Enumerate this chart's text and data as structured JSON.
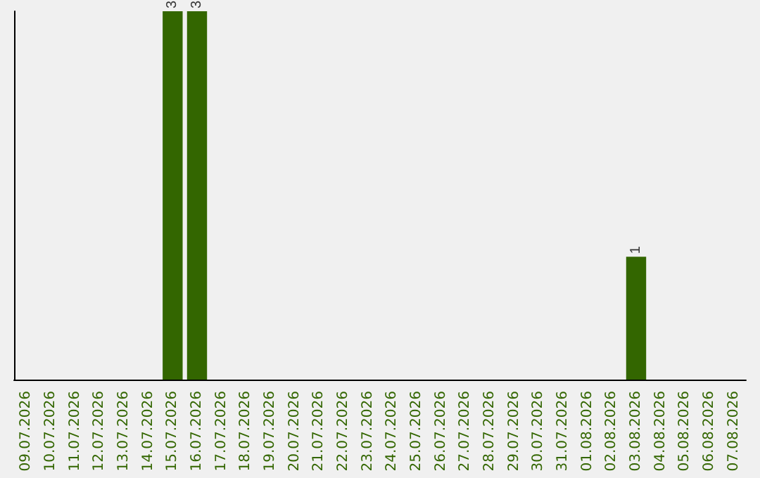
{
  "chart_data": {
    "type": "bar",
    "categories": [
      "09.07.2026",
      "10.07.2026",
      "11.07.2026",
      "12.07.2026",
      "13.07.2026",
      "14.07.2026",
      "15.07.2026",
      "16.07.2026",
      "17.07.2026",
      "18.07.2026",
      "19.07.2026",
      "20.07.2026",
      "21.07.2026",
      "22.07.2026",
      "23.07.2026",
      "24.07.2026",
      "25.07.2026",
      "26.07.2026",
      "27.07.2026",
      "28.07.2026",
      "29.07.2026",
      "30.07.2026",
      "31.07.2026",
      "01.08.2026",
      "02.08.2026",
      "03.08.2026",
      "04.08.2026",
      "05.08.2026",
      "06.08.2026",
      "07.08.2026"
    ],
    "values": [
      0,
      0,
      0,
      0,
      0,
      0,
      3,
      3,
      0,
      0,
      0,
      0,
      0,
      0,
      0,
      0,
      0,
      0,
      0,
      0,
      0,
      0,
      0,
      0,
      0,
      1,
      0,
      0,
      0,
      0
    ],
    "value_labels": [
      null,
      null,
      null,
      null,
      null,
      null,
      "3",
      "3",
      null,
      null,
      null,
      null,
      null,
      null,
      null,
      null,
      null,
      null,
      null,
      null,
      null,
      null,
      null,
      null,
      null,
      "1",
      null,
      null,
      null,
      null
    ],
    "color": "#336600",
    "grid": false,
    "tick_labels": "x"
  }
}
